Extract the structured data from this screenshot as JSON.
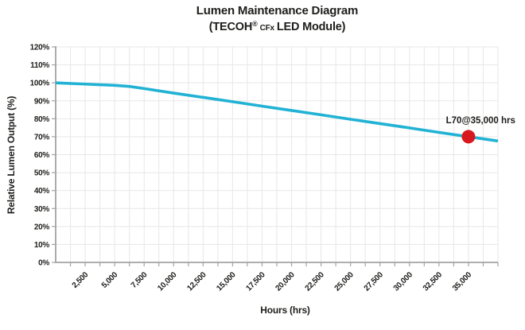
{
  "header": {
    "title": "Lumen Maintenance Diagram",
    "subtitle_pre": "(TECOH",
    "subtitle_reg": "®",
    "subtitle_code": "CFx",
    "subtitle_post": "LED Module)"
  },
  "chart_data": {
    "type": "line",
    "title": "Lumen Maintenance Diagram",
    "subtitle": "(TECOH® CFx LED Module)",
    "xlabel": "Hours (hrs)",
    "ylabel": "Relative Lumen Output (%)",
    "xlim": [
      0,
      37500
    ],
    "ylim": [
      0,
      120
    ],
    "x_tick_step": 1250,
    "x_label_step": 2500,
    "x_label_max": 35000,
    "y_tick_step": 10,
    "y_tick_suffix": "%",
    "grid": true,
    "legend": "none",
    "colors": {
      "line": "#21b2d4",
      "marker": "#d7181f",
      "grid": "#e7e7e7",
      "axis": "#a3a3a3",
      "text": "#1d1d1b"
    },
    "series": [
      {
        "name": "Relative lumen output",
        "color": "#21b2d4",
        "x": [
          0,
          2500,
          5000,
          6250,
          7500,
          10000,
          12500,
          15000,
          17500,
          20000,
          22500,
          25000,
          27500,
          30000,
          32500,
          35000,
          37500
        ],
        "y": [
          100,
          99.3,
          98.6,
          98,
          96.8,
          94.3,
          91.9,
          89.5,
          87.0,
          84.6,
          82.2,
          79.7,
          77.3,
          74.9,
          72.4,
          70,
          67.6
        ]
      }
    ],
    "marker": {
      "x": 35000,
      "y": 70,
      "label": "L70@35,000 hrs"
    }
  }
}
